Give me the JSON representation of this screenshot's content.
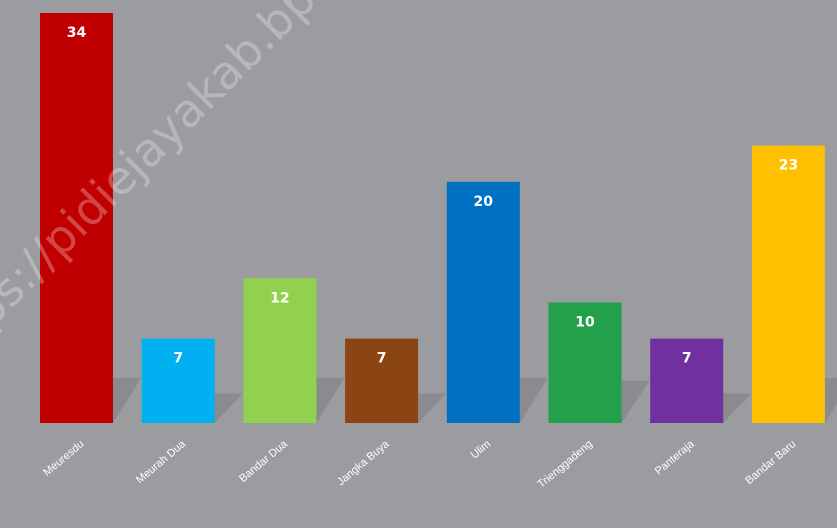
{
  "chart_data": {
    "type": "bar",
    "categories": [
      "Meuresdu",
      "Meurah Dua",
      "Bandar Dua",
      "Jangka Buya",
      "Ulim",
      "Trienggadeng",
      "Panteraja",
      "Bandar Baru"
    ],
    "values": [
      34,
      7,
      12,
      7,
      20,
      10,
      7,
      23
    ],
    "colors": [
      "#c00000",
      "#00b0f0",
      "#92d050",
      "#8b4513",
      "#0070c0",
      "#22a04a",
      "#7030a0",
      "#ffc000"
    ],
    "ylim": [
      0,
      35
    ],
    "grid": false,
    "legend": "none",
    "watermark": "ps://pidiejayakab.bp"
  }
}
